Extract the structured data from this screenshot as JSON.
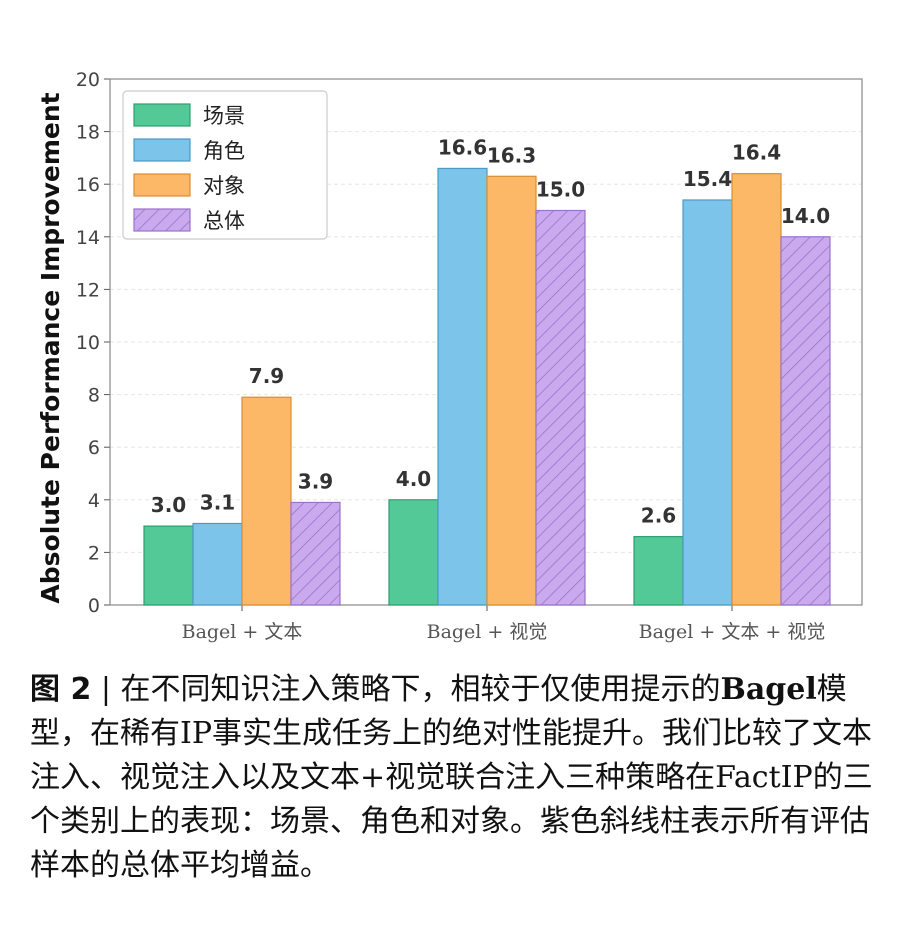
{
  "chart_data": {
    "type": "bar",
    "categories": [
      "Bagel + 文本",
      "Bagel + 视觉",
      "Bagel + 文本 + 视觉"
    ],
    "series": [
      {
        "name": "场景",
        "values": [
          3.0,
          4.0,
          2.6
        ],
        "color": "#52c996",
        "edge": "#2f9e6f",
        "pattern": "none"
      },
      {
        "name": "角色",
        "values": [
          3.1,
          16.6,
          15.4
        ],
        "color": "#7cc4ea",
        "edge": "#4c9ac4",
        "pattern": "none"
      },
      {
        "name": "对象",
        "values": [
          7.9,
          16.3,
          16.4
        ],
        "color": "#fcb866",
        "edge": "#d98e35",
        "pattern": "none"
      },
      {
        "name": "总体",
        "values": [
          3.9,
          15.0,
          14.0
        ],
        "color": "#c9aaee",
        "edge": "#9a72c9",
        "pattern": "hatch"
      }
    ],
    "data_labels": [
      [
        "3.0",
        "4.0",
        "2.6"
      ],
      [
        "3.1",
        "16.6",
        "15.4"
      ],
      [
        "7.9",
        "16.3",
        "16.4"
      ],
      [
        "3.9",
        "15.0",
        "14.0"
      ]
    ],
    "ylabel": "Absolute Performance Improvement",
    "xlabel": "",
    "ylim": [
      0,
      20
    ],
    "yticks": [
      "0",
      "2",
      "4",
      "6",
      "8",
      "10",
      "12",
      "14",
      "16",
      "18",
      "20"
    ],
    "grid": true,
    "legend_position": "top-left"
  },
  "caption": {
    "fig_label": "图 2",
    "separator": " | ",
    "text1": "在不同知识注入策略下，相较于仅使用提示的",
    "bold_word": "Bagel",
    "text2": "模型，在稀有IP事实生成任务上的绝对性能提升。我们比较了文本注入、视觉注入以及文本+视觉联合注入三种策略在FactIP的三个类别上的表现：场景、角色和对象。紫色斜线柱表示所有评估样本的总体平均增益。"
  }
}
